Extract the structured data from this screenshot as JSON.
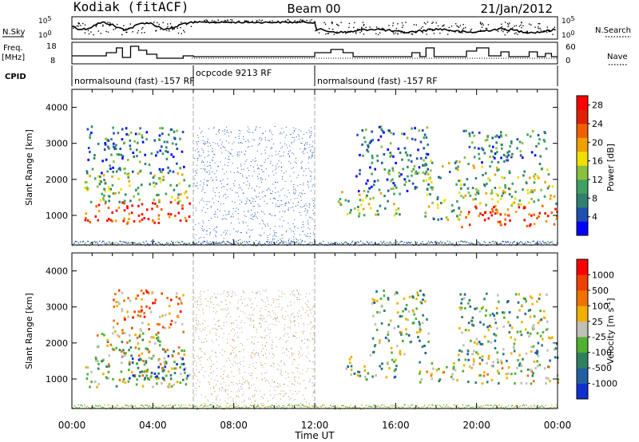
{
  "header": {
    "station": "Kodiak (fitACF)",
    "beam": "Beam 00",
    "date": "21/Jan/2012"
  },
  "strips": {
    "nsky_label": "N.Sky",
    "nsearch_label": "N.Search",
    "nsky_tick_top": "10^5",
    "nsky_tick_bottom": "10^0",
    "freq_label": "Freq.",
    "freq_unit": "[MHz]",
    "freq_tick_top": "18",
    "freq_tick_bottom": "8",
    "nave_label": "Nave",
    "nave_tick_top": "60",
    "nave_tick_bottom": "0",
    "cpid_label": "CPID"
  },
  "cpid_segments": [
    {
      "label": "normalsound (fast) -157 RF",
      "start_hour": 0,
      "end_hour": 6
    },
    {
      "label": "ocpcode 9213 RF",
      "start_hour": 6,
      "end_hour": 12
    },
    {
      "label": "normalsound (fast) -157 RF",
      "start_hour": 12,
      "end_hour": 24
    }
  ],
  "chart_data": [
    {
      "type": "heatmap",
      "panel": "power",
      "ylabel": "Slant Range [km]",
      "xlabel": "Time UT",
      "x_ticks": [
        "00:00",
        "04:00",
        "08:00",
        "12:00",
        "16:00",
        "20:00",
        "00:00"
      ],
      "x_range_hours": [
        0,
        24
      ],
      "y_ticks": [
        1000,
        2000,
        3000,
        4000
      ],
      "ylim": [
        180,
        4500
      ],
      "colorbar": {
        "label": "Power [dB]",
        "ticks": [
          4,
          8,
          12,
          16,
          20,
          24,
          28
        ],
        "range": [
          0,
          30
        ],
        "colors": [
          "#0000ff",
          "#1f4fb0",
          "#2f8070",
          "#3fa060",
          "#88c040",
          "#f0e000",
          "#f0a000",
          "#f06000",
          "#e02000",
          "#ff0000"
        ]
      },
      "regions": [
        {
          "t": [
            0.6,
            5.9
          ],
          "r": [
            800,
            1400
          ],
          "level": 0.9
        },
        {
          "t": [
            0.6,
            5.8
          ],
          "r": [
            1400,
            2200
          ],
          "level": 0.45
        },
        {
          "t": [
            0.6,
            5.5
          ],
          "r": [
            2200,
            3500
          ],
          "level": 0.25
        },
        {
          "t": [
            13.1,
            16.2
          ],
          "r": [
            1000,
            1700
          ],
          "level": 0.45
        },
        {
          "t": [
            14.0,
            17.6
          ],
          "r": [
            1700,
            3500
          ],
          "level": 0.25
        },
        {
          "t": [
            17.4,
            19.2
          ],
          "r": [
            900,
            2600
          ],
          "level": 0.4
        },
        {
          "t": [
            19.2,
            24.0
          ],
          "r": [
            700,
            1300
          ],
          "level": 0.85
        },
        {
          "t": [
            19.2,
            24.0
          ],
          "r": [
            1300,
            2500
          ],
          "level": 0.45
        },
        {
          "t": [
            19.2,
            23.5
          ],
          "r": [
            2500,
            3400
          ],
          "level": 0.25
        }
      ]
    },
    {
      "type": "heatmap",
      "panel": "velocity",
      "ylabel": "Slant Range [km]",
      "xlabel": "Time UT",
      "x_ticks": [
        "00:00",
        "04:00",
        "08:00",
        "12:00",
        "16:00",
        "20:00",
        "00:00"
      ],
      "x_range_hours": [
        0,
        24
      ],
      "y_ticks": [
        1000,
        2000,
        3000,
        4000
      ],
      "ylim": [
        180,
        4500
      ],
      "colorbar": {
        "label": "Velocity [m s^-1]",
        "ticks": [
          "1000",
          "500",
          "100",
          "25",
          "-25",
          "-100",
          "-500",
          "-1000"
        ],
        "colors": [
          "#1030d0",
          "#2060a0",
          "#308060",
          "#50b030",
          "#c0c0b8",
          "#f0b000",
          "#f07000",
          "#f04000",
          "#ff0000"
        ]
      },
      "regions": [
        {
          "t": [
            0.6,
            5.9
          ],
          "r": [
            800,
            1400
          ],
          "level": 0.5
        },
        {
          "t": [
            2.8,
            5.8
          ],
          "r": [
            1000,
            1700
          ],
          "level": 0.15
        },
        {
          "t": [
            1.0,
            5.6
          ],
          "r": [
            1400,
            2300
          ],
          "level": 0.5
        },
        {
          "t": [
            2.0,
            5.5
          ],
          "r": [
            2300,
            3500
          ],
          "level": 0.7
        },
        {
          "t": [
            13.4,
            16.0
          ],
          "r": [
            1000,
            1700
          ],
          "level": 0.4
        },
        {
          "t": [
            14.8,
            17.6
          ],
          "r": [
            1700,
            3500
          ],
          "level": 0.4
        },
        {
          "t": [
            17.0,
            24.0
          ],
          "r": [
            900,
            1500
          ],
          "level": 0.5
        },
        {
          "t": [
            19.0,
            24.0
          ],
          "r": [
            1500,
            2300
          ],
          "level": 0.4
        },
        {
          "t": [
            19.0,
            23.5
          ],
          "r": [
            2300,
            3400
          ],
          "level": 0.4
        }
      ]
    }
  ]
}
